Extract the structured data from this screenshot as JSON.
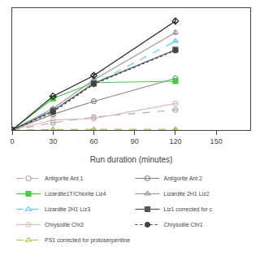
{
  "chart_data": {
    "type": "line",
    "xlabel": "Run duration (minutes)",
    "x": [
      0,
      30,
      60,
      120
    ],
    "xlim": [
      0,
      175
    ],
    "xticks": [
      0,
      30,
      60,
      90,
      120,
      150
    ],
    "ylim": [
      0,
      8.5
    ],
    "yticks": [],
    "tick_labels": "x",
    "grid": false,
    "legend": "bottom",
    "series": [
      {
        "name": "Antigorite Ant 1",
        "color": "#aaaaaa",
        "line_style": "dashed",
        "marker": "circle-open",
        "values": [
          0,
          0.5,
          0.9,
          1.4
        ],
        "yerr": [
          0,
          0,
          0,
          0
        ]
      },
      {
        "name": "Antigorite Ant 2",
        "color": "#888888",
        "line_style": "solid",
        "marker": "circle-open",
        "values": [
          0,
          1.1,
          2.0,
          3.6
        ],
        "yerr": [
          0,
          0,
          0,
          0
        ]
      },
      {
        "name": "Lizardite1T/Chlorite Liz4",
        "color": "#44cc44",
        "line_style": "solid",
        "marker": "square",
        "values": [
          0,
          2.2,
          3.3,
          3.4
        ],
        "yerr": [
          0,
          0,
          0,
          0
        ]
      },
      {
        "name": "Lizardite 2H1 Liz2",
        "color": "#999999",
        "line_style": "solid",
        "marker": "triangle-up-open",
        "values": [
          0,
          1.5,
          3.5,
          6.8
        ],
        "yerr": [
          0,
          0,
          0.12,
          0.15
        ]
      },
      {
        "name": "Lizardite 2H1 Liz3",
        "color": "#55ccee",
        "line_style": "dashed",
        "marker": "triangle-up-open",
        "values": [
          0,
          1.4,
          3.2,
          6.2
        ],
        "yerr": [
          0,
          0,
          0.12,
          0
        ]
      },
      {
        "name": "Liz1 corrected for c",
        "color": "#555555",
        "line_style": "solid",
        "marker": "square",
        "values": [
          0,
          1.35,
          3.25,
          5.6
        ],
        "yerr": [
          0,
          0,
          0,
          0
        ]
      },
      {
        "name": "Chrysotile Chr2",
        "color": "#ddbbbb",
        "line_style": "solid",
        "marker": "circle-open",
        "values": [
          0,
          0.7,
          0.8,
          1.85
        ],
        "yerr": [
          0,
          0,
          0,
          0
        ]
      },
      {
        "name": "Chrysotile Chr1",
        "color": "#444444",
        "line_style": "dotted",
        "marker": "circle",
        "values": [
          0,
          1.25,
          3.2,
          5.55
        ],
        "yerr": [
          0,
          0,
          0,
          0.12
        ]
      },
      {
        "name": "PS1 corrected for protoserpentine",
        "color": "#99cc44",
        "line_style": "dashed",
        "marker": "triangle-up-open",
        "values": [
          0,
          0.04,
          0.05,
          0.05
        ],
        "yerr": [
          0,
          0,
          0,
          0
        ]
      },
      {
        "color": "#222222",
        "line_style": "solid",
        "marker": "diamond-open",
        "values": [
          0,
          2.35,
          3.8,
          7.6
        ],
        "yerr": [
          0,
          0,
          0.1,
          0.12
        ]
      }
    ]
  }
}
